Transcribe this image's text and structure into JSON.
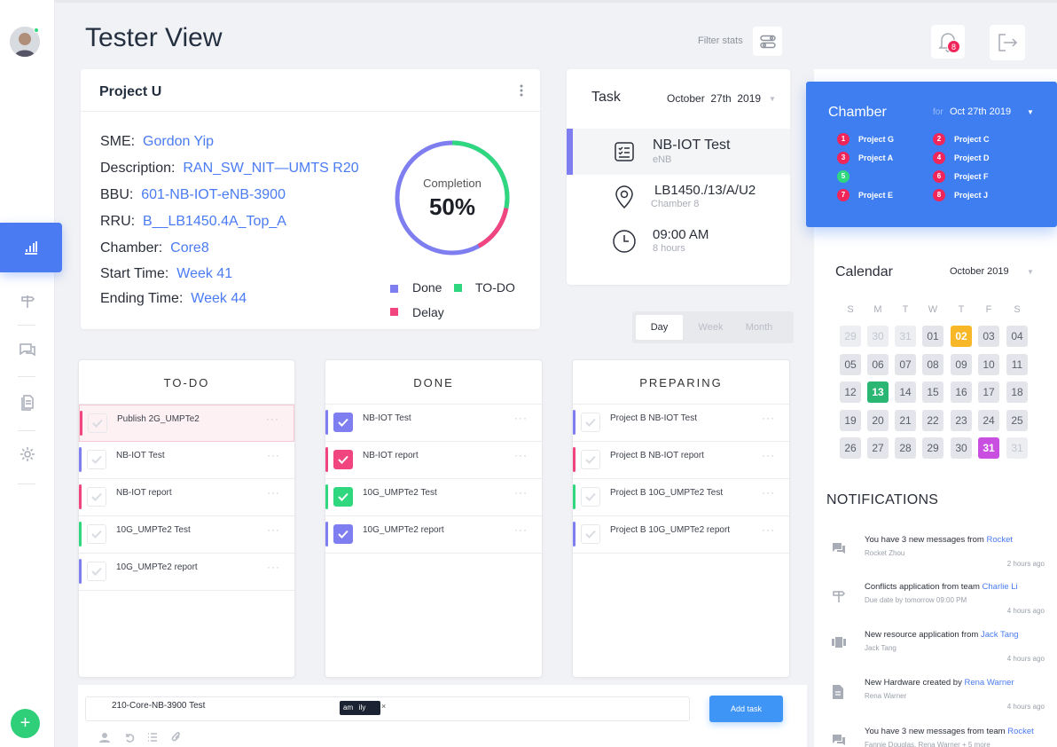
{
  "page": {
    "title": "Tester View",
    "filter_label": "Filter stats",
    "notification_count": "8"
  },
  "project": {
    "name": "Project U",
    "fields": [
      {
        "label": "SME:",
        "value": "Gordon Yip"
      },
      {
        "label": "Description:",
        "value": "RAN_SW_NIT—UMTS R20"
      },
      {
        "label": "BBU:",
        "value": "601-NB-IOT-eNB-3900"
      },
      {
        "label": "RRU:",
        "value": "B__LB1450.4A_Top_A"
      },
      {
        "label": "Chamber:",
        "value": "Core8"
      },
      {
        "label": "Start Time:",
        "value": "Week 41"
      },
      {
        "label": "Ending Time:",
        "value": "Week 44"
      }
    ],
    "completion_label": "Completion",
    "completion_value": "50%",
    "completion_fraction": 0.5,
    "legend": {
      "done": "Done",
      "todo": "TO-DO",
      "delay": "Delay"
    },
    "colors": {
      "done": "#7e7ef0",
      "todo": "#2fd87e",
      "delay": "#f0457e"
    }
  },
  "task": {
    "title": "Task",
    "date": "October  27th  2019",
    "name": "NB-IOT Test",
    "sub": "eNB",
    "location": "LB1450./13/A/U2",
    "location_sub": "Chamber 8",
    "time": "09:00 AM",
    "duration": "8 hours"
  },
  "view_tabs": [
    "Day",
    "Week",
    "Month"
  ],
  "chamber": {
    "title": "Chamber",
    "for": "for",
    "date": "Oct 27th 2019",
    "items": [
      {
        "num": "1",
        "name": "Project G",
        "color": "#f0255a"
      },
      {
        "num": "2",
        "name": "Project C",
        "color": "#f0255a"
      },
      {
        "num": "3",
        "name": "Project A",
        "color": "#f0255a"
      },
      {
        "num": "4",
        "name": "Project D",
        "color": "#f0255a"
      },
      {
        "num": "5",
        "name": "",
        "color": "#2fd87e"
      },
      {
        "num": "6",
        "name": "Project F",
        "color": "#f0255a"
      },
      {
        "num": "7",
        "name": "Project E",
        "color": "#f0255a"
      },
      {
        "num": "8",
        "name": "Project J",
        "color": "#f0255a"
      }
    ]
  },
  "calendar": {
    "title": "Calendar",
    "month": "October 2019",
    "weekdays": [
      "S",
      "M",
      "T",
      "W",
      "T",
      "F",
      "S"
    ],
    "days": [
      "29",
      "30",
      "31",
      "01",
      "02",
      "03",
      "04",
      "05",
      "06",
      "07",
      "08",
      "09",
      "10",
      "11",
      "12",
      "13",
      "14",
      "15",
      "16",
      "17",
      "18",
      "19",
      "20",
      "21",
      "22",
      "23",
      "24",
      "25",
      "26",
      "27",
      "28",
      "29",
      "30",
      "31",
      "31"
    ],
    "highlights": {
      "02": "#f7b726",
      "13": "#2bb673",
      "31": "#c84fe0"
    }
  },
  "columns": [
    {
      "title": "TO-DO",
      "items": [
        {
          "label": "Publish 2G_UMPTe2",
          "color": "#f0457e",
          "checked": false,
          "highlight": true
        },
        {
          "label": "NB-IOT Test",
          "color": "#7e7ef0",
          "checked": false
        },
        {
          "label": "NB-IOT report",
          "color": "#f0457e",
          "checked": false
        },
        {
          "label": "10G_UMPTe2 Test",
          "color": "#2fd87e",
          "checked": false
        },
        {
          "label": "10G_UMPTe2 report",
          "color": "#7e7ef0",
          "checked": false
        }
      ]
    },
    {
      "title": "DONE",
      "items": [
        {
          "label": "NB-IOT Test",
          "color": "#7e7ef0",
          "checked": true
        },
        {
          "label": "NB-IOT report",
          "color": "#f0457e",
          "checked": true
        },
        {
          "label": "10G_UMPTe2 Test",
          "color": "#2fd87e",
          "checked": true
        },
        {
          "label": "10G_UMPTe2 report",
          "color": "#7e7ef0",
          "checked": true
        }
      ]
    },
    {
      "title": "PREPARING",
      "items": [
        {
          "label": "Project B NB-IOT Test",
          "color": "#7e7ef0",
          "checked": false
        },
        {
          "label": "Project B NB-IOT report",
          "color": "#f0457e",
          "checked": false
        },
        {
          "label": "Project B 10G_UMPTe2 Test",
          "color": "#2fd87e",
          "checked": false
        },
        {
          "label": "Project B 10G_UMPTe2 report",
          "color": "#7e7ef0",
          "checked": false
        }
      ]
    }
  ],
  "add_task": {
    "value": "210-Core-NB-3900 Test",
    "tooltip": "am   ily",
    "button": "Add task"
  },
  "notifications": {
    "title": "NOTIFICATIONS",
    "items": [
      {
        "icon": "chat-icon",
        "text": "You have 3 new messages from ",
        "link": "Rocket",
        "sub": "Rocket Zhou",
        "time": "2 hours ago"
      },
      {
        "icon": "signpost-icon",
        "text": "Conflicts application from team ",
        "link": "Charlie Li",
        "sub": "Due date by tomorrow 09:00 PM",
        "time": "4 hours ago"
      },
      {
        "icon": "resource-icon",
        "text": "New resource application from ",
        "link": "Jack Tang",
        "sub": "Jack Tang",
        "time": "4 hours ago"
      },
      {
        "icon": "document-icon",
        "text": "New Hardware created by ",
        "link": "Rena Warner",
        "sub": "Rena Warner",
        "time": "4 hours ago"
      },
      {
        "icon": "chat-icon",
        "text": "You have 3 new messages from team ",
        "link": "Rocket",
        "sub": "Fannie Douglas, Rena Warner + 5 more",
        "time": ""
      }
    ]
  }
}
